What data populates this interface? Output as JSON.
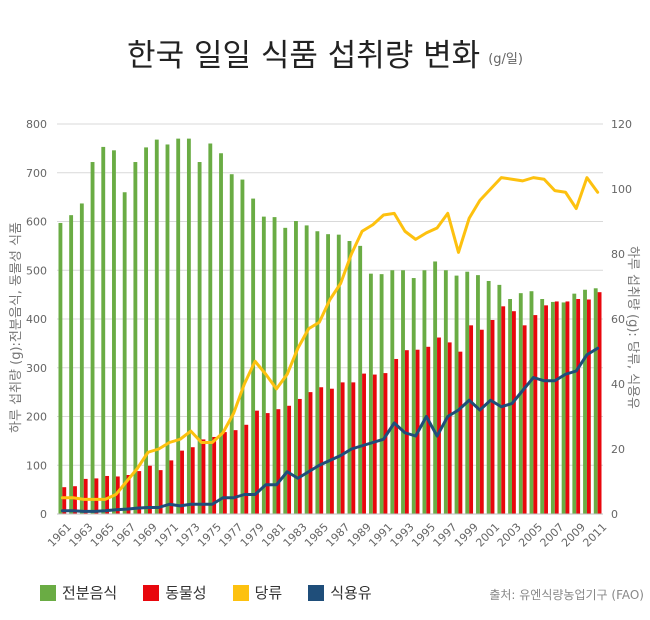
{
  "title": "한국 일일 식품 섭취량 변화",
  "unit": "(g/일)",
  "source": "출처: 유엔식량농업기구 (FAO)",
  "colors": {
    "grains": "#6aac44",
    "animal": "#e8070d",
    "sugar": "#fdc10f",
    "oil": "#1f4e7a",
    "grid": "#d9d9d9",
    "axis_text": "#666666"
  },
  "chart_data": {
    "type": "bar",
    "title": "한국 일일 식품 섭취량 변화",
    "ylabel_left": "하루 섭취량 (g):전분음식, 동물성 식품",
    "ylabel_right": "하루 섭취량 (g): 당류, 식용유",
    "ylim_left": [
      0,
      800
    ],
    "ylim_right": [
      0,
      120
    ],
    "yticks_left": [
      0,
      100,
      200,
      300,
      400,
      500,
      600,
      700,
      800
    ],
    "yticks_right": [
      0,
      20,
      40,
      60,
      80,
      100,
      120
    ],
    "grid": true,
    "legend_position": "bottom-left",
    "x": [
      1961,
      1962,
      1963,
      1964,
      1965,
      1966,
      1967,
      1968,
      1969,
      1970,
      1971,
      1972,
      1973,
      1974,
      1975,
      1976,
      1977,
      1978,
      1979,
      1980,
      1981,
      1982,
      1983,
      1984,
      1985,
      1986,
      1987,
      1988,
      1989,
      1990,
      1991,
      1992,
      1993,
      1994,
      1995,
      1996,
      1997,
      1998,
      1999,
      2000,
      2001,
      2002,
      2003,
      2004,
      2005,
      2006,
      2007,
      2008,
      2009,
      2010,
      2011
    ],
    "x_tick_labels": [
      "1961",
      "1963",
      "1965",
      "1967",
      "1969",
      "1971",
      "1973",
      "1975",
      "1977",
      "1979",
      "1981",
      "1983",
      "1985",
      "1987",
      "1989",
      "1991",
      "1993",
      "1995",
      "1997",
      "1999",
      "2001",
      "2003",
      "2005",
      "2007",
      "2009",
      "2011"
    ],
    "series": [
      {
        "name": "전분음식",
        "type": "bar",
        "axis": "left",
        "values": [
          597,
          613,
          637,
          722,
          753,
          746,
          660,
          722,
          752,
          768,
          758,
          770,
          770,
          722,
          760,
          740,
          697,
          686,
          647,
          610,
          609,
          587,
          601,
          592,
          580,
          574,
          573,
          560,
          550,
          493,
          492,
          500,
          500,
          484,
          500,
          518,
          500,
          489,
          497,
          490,
          478,
          470,
          441,
          453,
          457,
          441,
          435,
          434,
          452,
          460,
          463
        ]
      },
      {
        "name": "동물성",
        "type": "bar",
        "axis": "left",
        "values": [
          55,
          57,
          72,
          73,
          78,
          77,
          80,
          88,
          99,
          90,
          110,
          130,
          137,
          153,
          158,
          168,
          172,
          183,
          212,
          207,
          215,
          222,
          236,
          250,
          260,
          257,
          270,
          270,
          288,
          286,
          289,
          318,
          336,
          337,
          343,
          362,
          352,
          333,
          387,
          378,
          398,
          426,
          416,
          387,
          408,
          428,
          436,
          436,
          441,
          440,
          455
        ]
      },
      {
        "name": "당류",
        "type": "line",
        "axis": "right",
        "values": [
          5,
          5,
          4.5,
          4.5,
          4.5,
          6,
          10,
          14,
          19,
          20,
          22,
          23,
          25.5,
          22,
          22,
          25,
          31,
          40,
          47,
          43,
          38.5,
          43,
          51,
          57,
          59,
          66,
          71,
          80,
          87,
          89,
          92,
          92.5,
          87,
          84.5,
          86.5,
          88,
          92.5,
          80.5,
          91,
          96.5,
          100,
          103.5,
          103,
          102.5,
          103.5,
          103,
          99.5,
          99,
          94,
          103.5,
          99
        ]
      },
      {
        "name": "식용유",
        "type": "line",
        "axis": "right",
        "values": [
          1,
          1,
          0.8,
          0.8,
          1,
          1.3,
          1.5,
          1.8,
          2,
          2,
          3,
          2.5,
          3,
          3,
          3,
          5,
          5,
          6,
          6,
          9,
          9,
          13,
          11,
          13,
          15,
          16.5,
          18,
          20,
          21,
          22,
          23,
          28,
          25,
          24,
          30,
          24,
          30,
          32,
          35,
          32,
          35,
          33,
          34,
          38,
          42,
          41,
          41,
          43,
          44,
          49,
          51
        ]
      }
    ]
  }
}
